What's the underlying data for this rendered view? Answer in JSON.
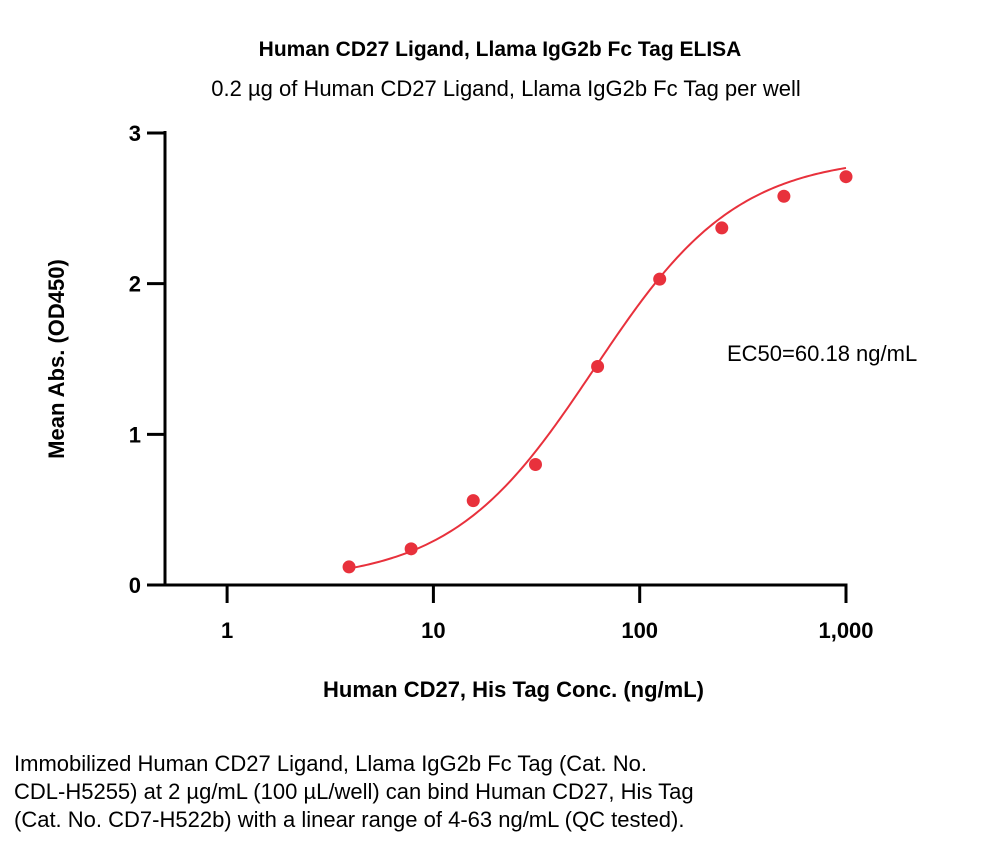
{
  "chart_data": {
    "type": "scatter",
    "title": "Human CD27 Ligand, Llama IgG2b Fc Tag ELISA",
    "subtitle": "0.2 µg of Human CD27 Ligand, Llama IgG2b Fc Tag per well",
    "xlabel": "Human CD27, His Tag Conc. (ng/mL)",
    "ylabel": "Mean Abs. (OD450)",
    "x_scale": "log",
    "xlim": [
      0.5,
      1000
    ],
    "ylim": [
      0,
      3
    ],
    "x_ticks": [
      1,
      10,
      100,
      1000
    ],
    "x_tick_labels": [
      "1",
      "10",
      "100",
      "1,000"
    ],
    "y_ticks": [
      0,
      1,
      2,
      3
    ],
    "y_tick_labels": [
      "0",
      "1",
      "2",
      "3"
    ],
    "grid": false,
    "series": [
      {
        "x": [
          3.9,
          7.8,
          15.6,
          31.25,
          62.5,
          125,
          250,
          500,
          1000
        ],
        "y": [
          0.12,
          0.24,
          0.56,
          0.8,
          1.45,
          2.03,
          2.37,
          2.58,
          2.71
        ],
        "color": "#e8313c",
        "fit": "4PL"
      }
    ],
    "fit_params": {
      "bottom": 0.02,
      "top": 2.85,
      "ec50": 60.18,
      "hill": 1.25
    },
    "annotation": "EC50=60.18 ng/mL"
  },
  "caption": {
    "line1": "Immobilized Human CD27 Ligand, Llama IgG2b Fc Tag (Cat. No.",
    "line2": "CDL-H5255) at 2 µg/mL (100 µL/well) can bind Human CD27, His Tag",
    "line3": "(Cat. No. CD7-H522b) with a linear range of 4-63 ng/mL (QC tested)."
  }
}
